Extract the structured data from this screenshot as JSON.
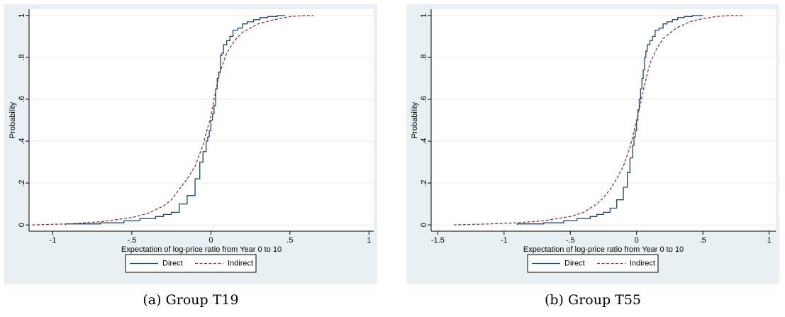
{
  "colors": {
    "background": "#e9f0f4",
    "plot_area": "#ffffff",
    "grid": "#e6edf1",
    "direct": "#1a476f",
    "indirect": "#90353b"
  },
  "chart_data": [
    {
      "type": "line",
      "caption_prefix": "(a)",
      "caption": "Group T19",
      "xlabel": "Expectation of log-price ratio from Year 0 to 10",
      "ylabel": "Probability",
      "xlim": [
        -1.15,
        1.03
      ],
      "ylim": [
        0,
        1
      ],
      "xticks": [
        -1,
        -0.5,
        0,
        0.5,
        1
      ],
      "xtick_labels": [
        "-1",
        "-.5",
        "0",
        ".5",
        "1"
      ],
      "yticks": [
        0,
        0.2,
        0.4,
        0.6,
        0.8,
        1
      ],
      "ytick_labels": [
        "0",
        ".2",
        ".4",
        ".6",
        ".8",
        "1"
      ],
      "grid": true,
      "legend": "bottom",
      "series": [
        {
          "name": "Direct",
          "style": "solid",
          "step": true,
          "x": [
            -0.92,
            -0.7,
            -0.55,
            -0.45,
            -0.35,
            -0.3,
            -0.25,
            -0.2,
            -0.15,
            -0.1,
            -0.07,
            -0.05,
            -0.03,
            -0.02,
            -0.01,
            0.0,
            0.01,
            0.02,
            0.03,
            0.04,
            0.05,
            0.06,
            0.07,
            0.08,
            0.1,
            0.12,
            0.14,
            0.17,
            0.2,
            0.23,
            0.27,
            0.31,
            0.36,
            0.42,
            0.47
          ],
          "y": [
            0.005,
            0.01,
            0.02,
            0.03,
            0.04,
            0.05,
            0.06,
            0.1,
            0.14,
            0.22,
            0.3,
            0.35,
            0.4,
            0.42,
            0.45,
            0.5,
            0.53,
            0.57,
            0.65,
            0.7,
            0.73,
            0.81,
            0.82,
            0.86,
            0.88,
            0.9,
            0.93,
            0.94,
            0.96,
            0.97,
            0.98,
            0.99,
            0.995,
            1.0,
            1.0
          ]
        },
        {
          "name": "Indirect",
          "style": "dashed",
          "step": false,
          "x": [
            -1.13,
            -0.9,
            -0.7,
            -0.5,
            -0.4,
            -0.3,
            -0.25,
            -0.2,
            -0.15,
            -0.1,
            -0.08,
            -0.05,
            -0.03,
            -0.01,
            0.0,
            0.02,
            0.05,
            0.08,
            0.1,
            0.15,
            0.2,
            0.3,
            0.4,
            0.5,
            0.6,
            0.65
          ],
          "y": [
            0.0,
            0.005,
            0.015,
            0.035,
            0.055,
            0.09,
            0.12,
            0.17,
            0.22,
            0.28,
            0.32,
            0.38,
            0.44,
            0.49,
            0.52,
            0.6,
            0.71,
            0.78,
            0.82,
            0.88,
            0.92,
            0.96,
            0.98,
            0.995,
            1.0,
            1.0
          ]
        }
      ]
    },
    {
      "type": "line",
      "caption_prefix": "(b)",
      "caption": "Group T55",
      "xlabel": "Expectation of log-price ratio from Year 0 to 10",
      "ylabel": "Probability",
      "xlim": [
        -1.55,
        1.05
      ],
      "ylim": [
        0,
        1
      ],
      "xticks": [
        -1.5,
        -1,
        -0.5,
        0,
        0.5,
        1
      ],
      "xtick_labels": [
        "-1.5",
        "-1",
        "-.5",
        "0",
        ".5",
        "1"
      ],
      "yticks": [
        0,
        0.2,
        0.4,
        0.6,
        0.8,
        1
      ],
      "ytick_labels": [
        "0",
        ".2",
        ".4",
        ".6",
        ".8",
        "1"
      ],
      "grid": true,
      "legend": "bottom",
      "series": [
        {
          "name": "Direct",
          "style": "solid",
          "step": true,
          "x": [
            -0.9,
            -0.7,
            -0.55,
            -0.45,
            -0.35,
            -0.3,
            -0.25,
            -0.2,
            -0.15,
            -0.1,
            -0.07,
            -0.05,
            -0.03,
            -0.02,
            -0.01,
            0.0,
            0.01,
            0.02,
            0.03,
            0.04,
            0.05,
            0.06,
            0.07,
            0.08,
            0.1,
            0.12,
            0.14,
            0.17,
            0.2,
            0.23,
            0.27,
            0.31,
            0.36,
            0.42,
            0.5
          ],
          "y": [
            0.005,
            0.01,
            0.02,
            0.03,
            0.04,
            0.05,
            0.06,
            0.08,
            0.12,
            0.18,
            0.25,
            0.32,
            0.38,
            0.42,
            0.45,
            0.5,
            0.55,
            0.6,
            0.65,
            0.7,
            0.74,
            0.8,
            0.83,
            0.86,
            0.88,
            0.9,
            0.93,
            0.94,
            0.96,
            0.97,
            0.98,
            0.99,
            0.995,
            1.0,
            1.0
          ]
        },
        {
          "name": "Indirect",
          "style": "dashed",
          "step": false,
          "x": [
            -1.38,
            -1.1,
            -0.9,
            -0.7,
            -0.5,
            -0.4,
            -0.3,
            -0.25,
            -0.2,
            -0.15,
            -0.1,
            -0.05,
            -0.03,
            0.0,
            0.03,
            0.05,
            0.08,
            0.1,
            0.15,
            0.2,
            0.3,
            0.4,
            0.5,
            0.6,
            0.7,
            0.8
          ],
          "y": [
            0.0,
            0.005,
            0.01,
            0.02,
            0.04,
            0.06,
            0.1,
            0.13,
            0.17,
            0.22,
            0.28,
            0.37,
            0.42,
            0.5,
            0.58,
            0.64,
            0.72,
            0.77,
            0.84,
            0.89,
            0.94,
            0.97,
            0.985,
            0.995,
            1.0,
            1.0
          ]
        }
      ]
    }
  ]
}
